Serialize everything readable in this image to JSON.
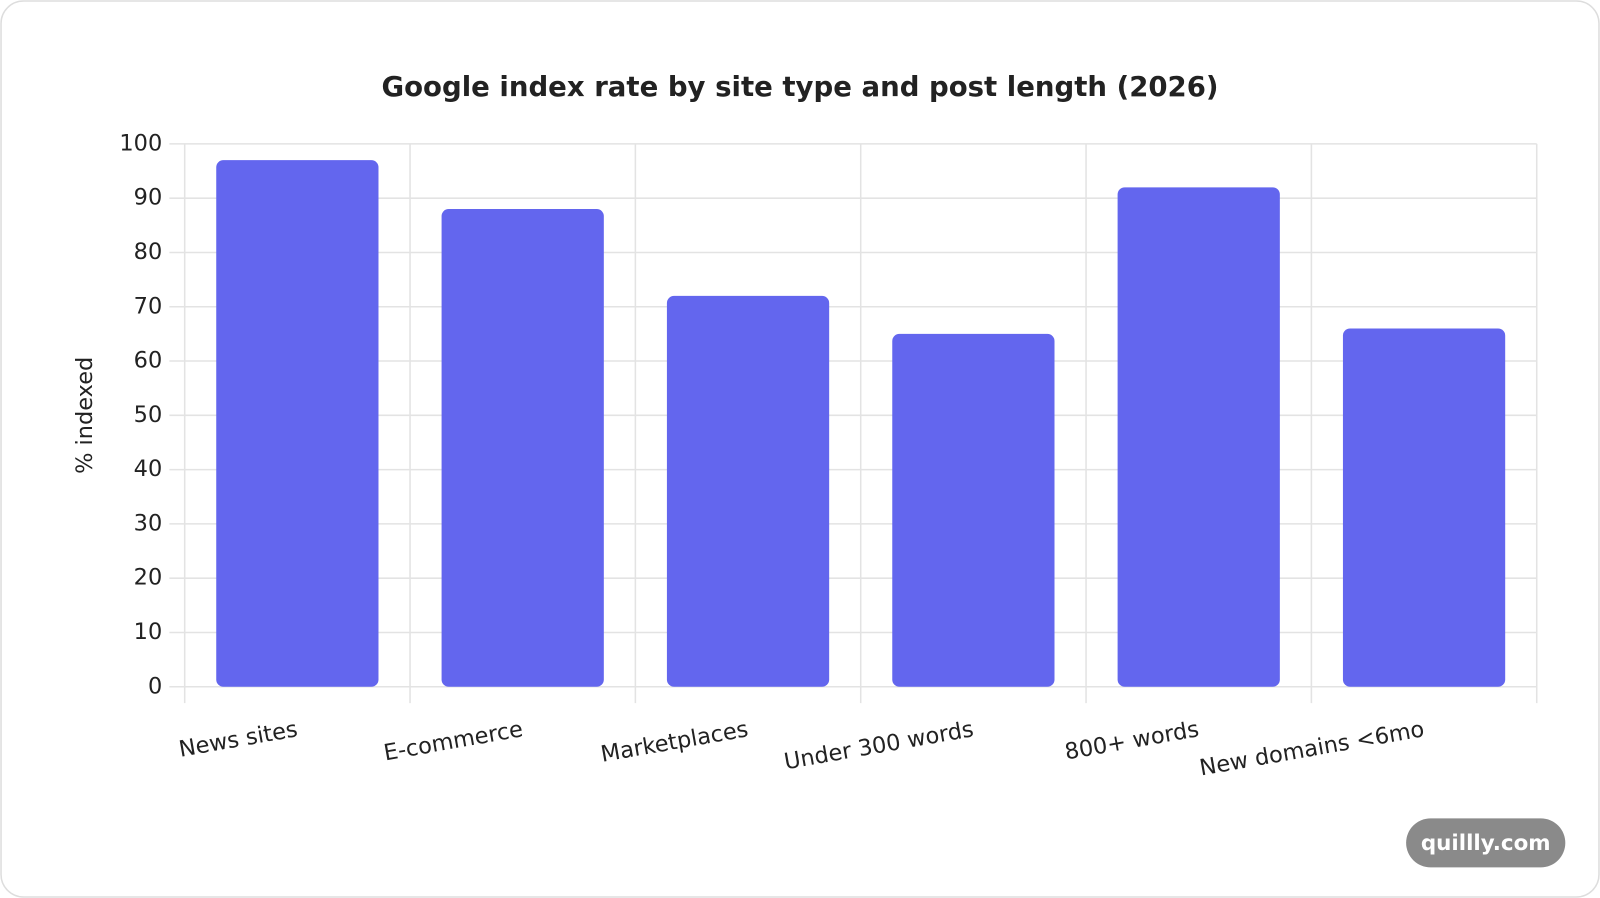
{
  "chart_data": {
    "type": "bar",
    "title": "Google index rate by site type and post length (2026)",
    "y_label": "% indexed",
    "categories": [
      "News sites",
      "E-commerce",
      "Marketplaces",
      "Under 300 words",
      "800+ words",
      "New domains <6mo"
    ],
    "values": [
      97,
      88,
      72,
      65,
      92,
      66
    ],
    "color": "#6366ee",
    "ylim": [
      0,
      100
    ],
    "yticks": [
      0,
      10,
      20,
      30,
      40,
      50,
      60,
      70,
      80,
      90,
      100
    ],
    "grid": true
  },
  "watermark": "quillly.com"
}
